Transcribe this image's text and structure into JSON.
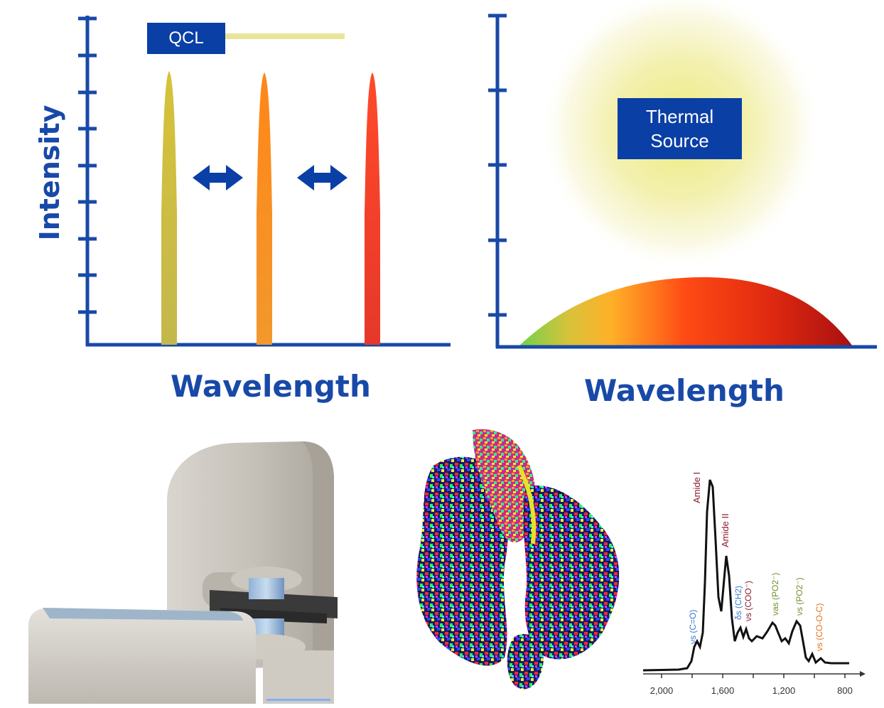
{
  "qcl_panel": {
    "label": "QCL",
    "y_axis_label": "Intensity",
    "x_axis_label": "Wavelength",
    "peaks": [
      {
        "color_top": "#d8c53a",
        "color_bottom": "#b9b44a"
      },
      {
        "color_top": "#ff8a1c",
        "color_bottom": "#f49a2a"
      },
      {
        "color_top": "#ff4a2a",
        "color_bottom": "#e83a26"
      }
    ],
    "accent": "#1849a8"
  },
  "thermal_panel": {
    "label_line1": "Thermal",
    "label_line2": "Source",
    "x_axis_label": "Wavelength",
    "glow_color": "#eeea8e"
  },
  "spectrum": {
    "x_ticks": [
      "2,000",
      "1,600",
      "1,200",
      "800"
    ],
    "annotations": [
      {
        "text": "Amide I",
        "color": "#8b1a2b"
      },
      {
        "text": "Amide II",
        "color": "#8b1a2b"
      },
      {
        "text": "νs (C=O)",
        "color": "#3a78d0"
      },
      {
        "text": "δs (CH2)",
        "color": "#3a78d0"
      },
      {
        "text": "νs (COO⁻)",
        "color": "#8b1a2b"
      },
      {
        "text": "νas (PO2⁻)",
        "color": "#6f8f2a"
      },
      {
        "text": "νs (PO2⁻)",
        "color": "#6f8f2a"
      },
      {
        "text": "νs (CO-O-C)",
        "color": "#e0701a"
      }
    ]
  },
  "instrument": {
    "icon": "microscope-instrument-icon"
  },
  "tissue_map": {
    "icon": "tissue-chemical-image-icon"
  }
}
